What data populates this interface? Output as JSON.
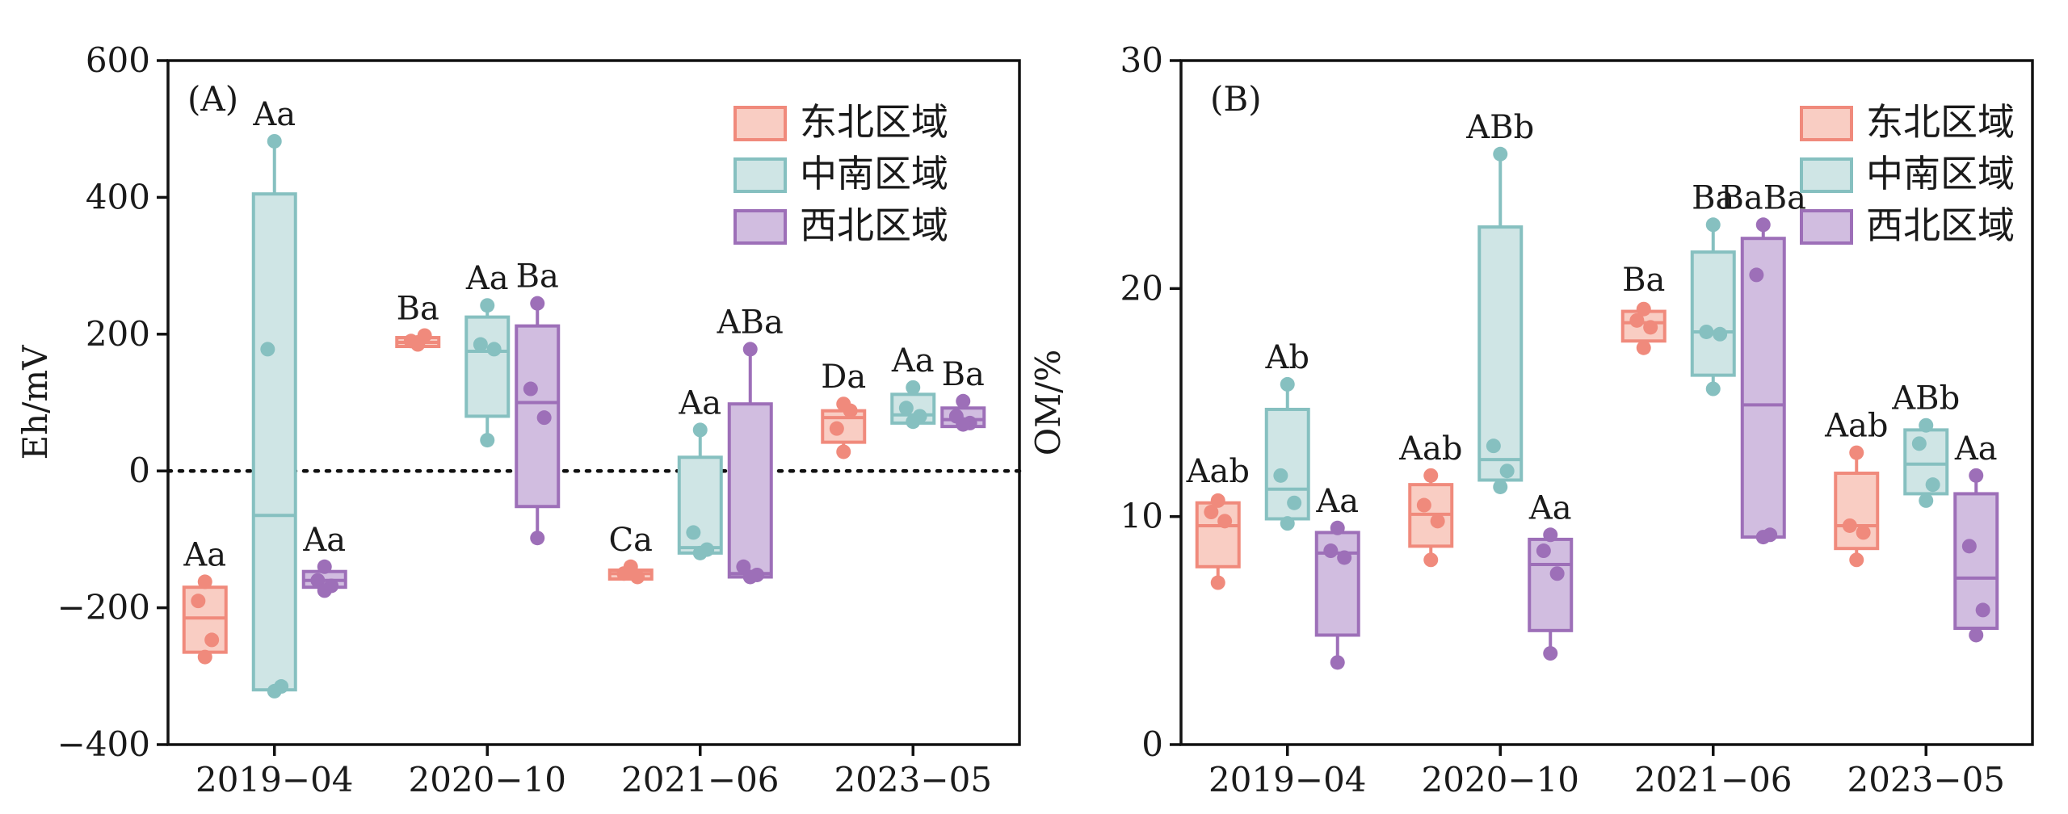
{
  "colors": {
    "东北区域": {
      "fill": "#f9cdc3",
      "stroke": "#f08a7c",
      "dot": "#f08a7c"
    },
    "中南区域": {
      "fill": "#cfe5e5",
      "stroke": "#86c0c0",
      "dot": "#86c0c0"
    },
    "西北区域": {
      "fill": "#d1bde0",
      "stroke": "#9d6fb8",
      "dot": "#9d6fb8"
    }
  },
  "legend": [
    "东北区域",
    "中南区域",
    "西北区域"
  ],
  "chart_data": [
    {
      "type": "box",
      "panel_label": "(A)",
      "xlabel": "",
      "ylabel": "Eh/mV",
      "ylim": [
        -400,
        600
      ],
      "yticks": [
        -400,
        -200,
        0,
        200,
        400,
        600
      ],
      "ytick_labels": [
        "−400",
        "−200",
        "0",
        "200",
        "400",
        "600"
      ],
      "categories": [
        "2019−04",
        "2020−10",
        "2021−06",
        "2023−05"
      ],
      "reference_line": 0,
      "series": [
        {
          "name": "东北区域",
          "groups": [
            {
              "q1": -265,
              "median": -215,
              "q3": -170,
              "min": -272,
              "max": -162,
              "points": [
                -162,
                -190,
                -247,
                -272
              ],
              "letter": "Aa"
            },
            {
              "q1": 182,
              "median": 188,
              "q3": 195,
              "min": 182,
              "max": 198,
              "points": [
                185,
                190,
                198,
                188
              ],
              "letter": "Ba"
            },
            {
              "q1": -158,
              "median": -150,
              "q3": -145,
              "min": -158,
              "max": -140,
              "points": [
                -140,
                -150,
                -155,
                -148
              ],
              "letter": "Ca"
            },
            {
              "q1": 42,
              "median": 78,
              "q3": 88,
              "min": 28,
              "max": 98,
              "points": [
                28,
                62,
                88,
                98
              ],
              "letter": "Da"
            }
          ]
        },
        {
          "name": "中南区域",
          "groups": [
            {
              "q1": -320,
              "median": -65,
              "q3": 405,
              "min": -322,
              "max": 482,
              "points": [
                482,
                178,
                -315,
                -322
              ],
              "letter": "Aa"
            },
            {
              "q1": 80,
              "median": 175,
              "q3": 225,
              "min": 45,
              "max": 242,
              "points": [
                242,
                185,
                178,
                45
              ],
              "letter": "Aa"
            },
            {
              "q1": -120,
              "median": -112,
              "q3": 20,
              "min": -125,
              "max": 60,
              "points": [
                60,
                -90,
                -115,
                -120
              ],
              "letter": "Aa"
            },
            {
              "q1": 70,
              "median": 82,
              "q3": 112,
              "min": 70,
              "max": 122,
              "points": [
                122,
                92,
                80,
                72
              ],
              "letter": "Aa"
            }
          ]
        },
        {
          "name": "西北区域",
          "groups": [
            {
              "q1": -170,
              "median": -160,
              "q3": -147,
              "min": -175,
              "max": -140,
              "points": [
                -140,
                -160,
                -168,
                -175
              ],
              "letter": "Aa"
            },
            {
              "q1": -52,
              "median": 100,
              "q3": 212,
              "min": -98,
              "max": 245,
              "points": [
                245,
                120,
                78,
                -98
              ],
              "letter": "Ba"
            },
            {
              "q1": -155,
              "median": -150,
              "q3": 98,
              "min": -155,
              "max": 178,
              "points": [
                178,
                -140,
                -152,
                -155
              ],
              "letter": "ABa"
            },
            {
              "q1": 65,
              "median": 75,
              "q3": 92,
              "min": 65,
              "max": 102,
              "points": [
                102,
                80,
                70,
                68
              ],
              "letter": "Ba"
            }
          ]
        }
      ]
    },
    {
      "type": "box",
      "panel_label": "(B)",
      "xlabel": "",
      "ylabel": "OM/%",
      "ylim": [
        0,
        30
      ],
      "yticks": [
        0,
        10,
        20,
        30
      ],
      "ytick_labels": [
        "0",
        "10",
        "20",
        "30"
      ],
      "categories": [
        "2019−04",
        "2020−10",
        "2021−06",
        "2023−05"
      ],
      "reference_line": null,
      "series": [
        {
          "name": "东北区域",
          "groups": [
            {
              "q1": 7.8,
              "median": 9.6,
              "q3": 10.6,
              "min": 7.1,
              "max": 10.8,
              "points": [
                10.7,
                10.2,
                9.8,
                7.1
              ],
              "letter": "Aab"
            },
            {
              "q1": 8.7,
              "median": 10.1,
              "q3": 11.4,
              "min": 8.1,
              "max": 11.8,
              "points": [
                11.8,
                10.5,
                9.8,
                8.1
              ],
              "letter": "Aab"
            },
            {
              "q1": 17.7,
              "median": 18.5,
              "q3": 19.0,
              "min": 17.4,
              "max": 19.2,
              "points": [
                19.1,
                18.6,
                18.3,
                17.4
              ],
              "letter": "Ba"
            },
            {
              "q1": 8.6,
              "median": 9.6,
              "q3": 11.9,
              "min": 8.1,
              "max": 12.8,
              "points": [
                12.8,
                9.6,
                9.3,
                8.1
              ],
              "letter": "Aab"
            }
          ]
        },
        {
          "name": "中南区域",
          "groups": [
            {
              "q1": 9.9,
              "median": 11.2,
              "q3": 14.7,
              "min": 9.7,
              "max": 15.8,
              "points": [
                15.8,
                11.8,
                10.6,
                9.7
              ],
              "letter": "Ab"
            },
            {
              "q1": 11.6,
              "median": 12.5,
              "q3": 22.7,
              "min": 11.3,
              "max": 25.9,
              "points": [
                25.9,
                13.1,
                12.0,
                11.3
              ],
              "letter": "ABb"
            },
            {
              "q1": 16.2,
              "median": 18.1,
              "q3": 21.6,
              "min": 15.6,
              "max": 22.8,
              "points": [
                22.8,
                18.1,
                18.0,
                15.6
              ],
              "letter": "Ba"
            },
            {
              "q1": 11.0,
              "median": 12.3,
              "q3": 13.8,
              "min": 10.7,
              "max": 14.0,
              "points": [
                14.0,
                13.2,
                11.4,
                10.7
              ],
              "letter": "ABb"
            }
          ]
        },
        {
          "name": "西北区域",
          "groups": [
            {
              "q1": 4.8,
              "median": 8.4,
              "q3": 9.3,
              "min": 3.6,
              "max": 9.5,
              "points": [
                9.5,
                8.5,
                8.2,
                3.6
              ],
              "letter": "Aa"
            },
            {
              "q1": 5.0,
              "median": 7.9,
              "q3": 9.0,
              "min": 4.0,
              "max": 9.2,
              "points": [
                9.2,
                8.5,
                7.5,
                4.0
              ],
              "letter": "Aa"
            },
            {
              "q1": 9.1,
              "median": 14.9,
              "q3": 22.2,
              "min": 9.1,
              "max": 22.8,
              "points": [
                22.8,
                20.6,
                9.2,
                9.1
              ],
              "letter": "BaBa"
            },
            {
              "q1": 5.1,
              "median": 7.3,
              "q3": 11.0,
              "min": 4.8,
              "max": 11.8,
              "points": [
                11.8,
                8.7,
                5.9,
                4.8
              ],
              "letter": "Aa"
            }
          ]
        }
      ]
    }
  ]
}
